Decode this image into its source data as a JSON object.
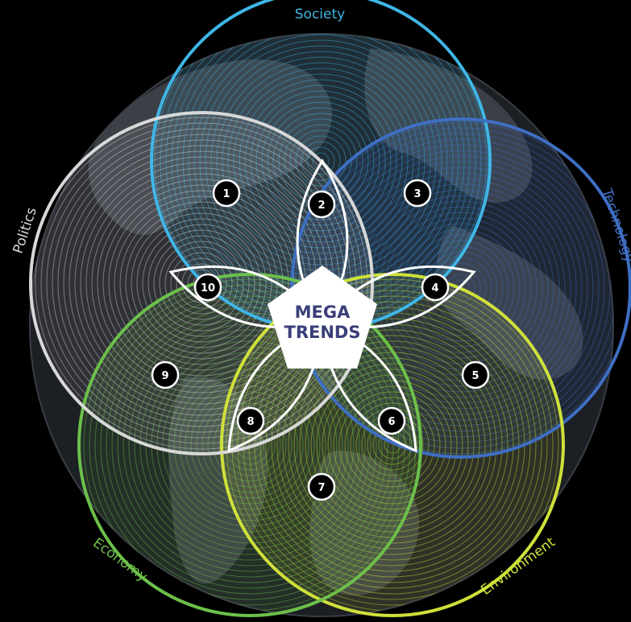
{
  "diagram": {
    "center_lines": [
      "MEGA",
      "TRENDS"
    ],
    "categories": [
      {
        "label": "Society",
        "color": "#3fb6e6"
      },
      {
        "label": "Technology",
        "color": "#3f6fc4"
      },
      {
        "label": "Environment",
        "color": "#cfe03a"
      },
      {
        "label": "Economy",
        "color": "#6cc04a"
      },
      {
        "label": "Politics",
        "color": "#d8d8d8"
      }
    ],
    "markers": [
      "1",
      "2",
      "3",
      "4",
      "5",
      "6",
      "7",
      "8",
      "9",
      "10"
    ],
    "colors": {
      "background": "#000000",
      "globe": "#1c1f24",
      "land": "#3b3f46",
      "outline": "#ffffff",
      "marker_fill": "#000000"
    }
  }
}
